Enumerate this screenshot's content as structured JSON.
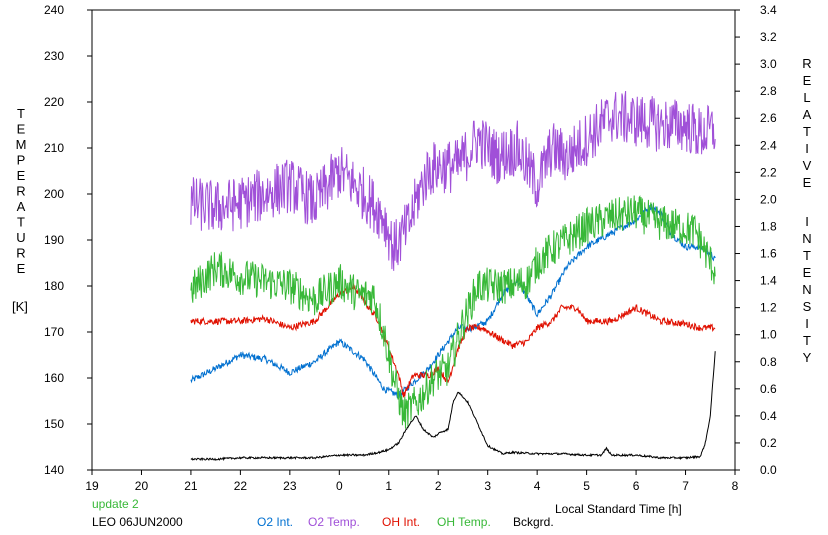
{
  "chart_data": {
    "type": "line",
    "left_axis_label": "TEMPERATURE",
    "left_axis_unit": "[K]",
    "right_axis_label": "RELATIVE INTENSITY",
    "xlabel": "Local Standard Time [h]",
    "xlim": [
      19,
      8
    ],
    "x_tick_labels": [
      "19",
      "20",
      "21",
      "22",
      "23",
      "0",
      "1",
      "2",
      "3",
      "4",
      "5",
      "6",
      "7",
      "8"
    ],
    "ylim_left": [
      140,
      240
    ],
    "y_left_ticks": [
      140,
      150,
      160,
      170,
      180,
      190,
      200,
      210,
      220,
      230,
      240
    ],
    "ylim_right": [
      0.0,
      3.4
    ],
    "y_right_ticks": [
      "0.0",
      "0.2",
      "0.4",
      "0.6",
      "0.8",
      "1.0",
      "1.2",
      "1.4",
      "1.6",
      "1.8",
      "2.0",
      "2.2",
      "2.4",
      "2.6",
      "2.8",
      "3.0",
      "3.2",
      "3.4"
    ],
    "grid": false,
    "update_note": "update 2",
    "station_date": "LEO 06JUN2000",
    "series": [
      {
        "name": "O2 Int.",
        "color": "#0070d0",
        "axis": "right",
        "noise": 0.025,
        "x": [
          21.0,
          21.5,
          22.0,
          22.5,
          23.0,
          23.5,
          24.0,
          24.5,
          24.9,
          25.2,
          25.5,
          25.8,
          26.1,
          26.4,
          26.7,
          27.0,
          27.3,
          27.6,
          28.0,
          28.3,
          28.6,
          29.0,
          29.5,
          30.0,
          30.3,
          30.5,
          30.7,
          31.0,
          31.3,
          31.5,
          31.6
        ],
        "y": [
          0.66,
          0.75,
          0.85,
          0.82,
          0.72,
          0.8,
          0.95,
          0.82,
          0.6,
          0.55,
          0.65,
          0.75,
          0.9,
          1.05,
          1.05,
          1.1,
          1.3,
          1.4,
          1.15,
          1.3,
          1.5,
          1.65,
          1.75,
          1.85,
          1.95,
          1.9,
          1.75,
          1.65,
          1.65,
          1.6,
          1.55
        ]
      },
      {
        "name": "O2 Temp.",
        "color": "#a050d8",
        "axis": "left",
        "noise": 6,
        "x": [
          21.0,
          21.5,
          22.0,
          22.5,
          23.0,
          23.5,
          24.0,
          24.5,
          24.9,
          25.1,
          25.4,
          25.6,
          25.8,
          26.0,
          26.4,
          26.8,
          27.2,
          27.6,
          28.0,
          28.3,
          28.6,
          29.0,
          29.5,
          30.0,
          30.5,
          31.0,
          31.3,
          31.6
        ],
        "y": [
          198,
          197,
          198,
          200,
          202,
          198,
          205,
          200,
          195,
          188,
          193,
          200,
          205,
          206,
          206,
          212,
          208,
          210,
          202,
          210,
          208,
          212,
          217,
          216,
          215,
          215,
          213,
          214
        ]
      },
      {
        "name": "OH Int.",
        "color": "#e01000",
        "axis": "right",
        "noise": 0.025,
        "x": [
          21.0,
          21.5,
          22.0,
          22.5,
          23.0,
          23.5,
          24.0,
          24.3,
          24.6,
          24.8,
          25.0,
          25.2,
          25.3,
          25.5,
          25.8,
          26.0,
          26.2,
          26.4,
          26.6,
          26.9,
          27.2,
          27.5,
          27.8,
          28.0,
          28.3,
          28.5,
          28.8,
          29.0,
          29.5,
          30.0,
          30.5,
          31.0,
          31.3,
          31.6
        ],
        "y": [
          1.1,
          1.1,
          1.1,
          1.12,
          1.05,
          1.1,
          1.3,
          1.35,
          1.2,
          1.1,
          0.9,
          0.7,
          0.55,
          0.7,
          0.7,
          0.75,
          0.65,
          0.9,
          1.05,
          1.05,
          0.98,
          0.92,
          0.95,
          1.05,
          1.1,
          1.2,
          1.2,
          1.1,
          1.1,
          1.2,
          1.1,
          1.08,
          1.05,
          1.05
        ]
      },
      {
        "name": "OH Temp.",
        "color": "#38b838",
        "axis": "left",
        "noise": 4,
        "x": [
          21.0,
          21.5,
          22.0,
          22.5,
          23.0,
          23.5,
          24.0,
          24.4,
          24.7,
          24.9,
          25.1,
          25.3,
          25.6,
          25.9,
          26.2,
          26.5,
          26.8,
          27.0,
          27.4,
          27.8,
          28.0,
          28.3,
          28.6,
          29.0,
          29.5,
          30.0,
          30.4,
          30.8,
          31.2,
          31.6
        ],
        "y": [
          179,
          184,
          182,
          181,
          180,
          177,
          181,
          178,
          178,
          170,
          160,
          152,
          155,
          160,
          162,
          172,
          180,
          180,
          180,
          181,
          185,
          188,
          190,
          193,
          195,
          196,
          194,
          193,
          192,
          183
        ]
      },
      {
        "name": "Bckgrd.",
        "color": "#000000",
        "axis": "right",
        "noise": 0.007,
        "x": [
          21.0,
          21.5,
          22.0,
          22.5,
          23.0,
          23.5,
          24.0,
          24.5,
          24.8,
          25.0,
          25.2,
          25.4,
          25.55,
          25.7,
          25.9,
          26.05,
          26.2,
          26.3,
          26.4,
          26.6,
          26.8,
          27.0,
          27.3,
          27.5,
          28.0,
          28.5,
          29.0,
          29.3,
          29.4,
          29.5,
          30.0,
          30.5,
          31.0,
          31.3,
          31.4,
          31.5,
          31.6
        ],
        "y": [
          0.08,
          0.08,
          0.09,
          0.09,
          0.09,
          0.09,
          0.11,
          0.11,
          0.13,
          0.15,
          0.2,
          0.33,
          0.4,
          0.3,
          0.24,
          0.28,
          0.3,
          0.5,
          0.58,
          0.5,
          0.34,
          0.18,
          0.12,
          0.13,
          0.12,
          0.12,
          0.11,
          0.11,
          0.16,
          0.11,
          0.11,
          0.09,
          0.09,
          0.1,
          0.2,
          0.4,
          0.88
        ]
      }
    ]
  }
}
